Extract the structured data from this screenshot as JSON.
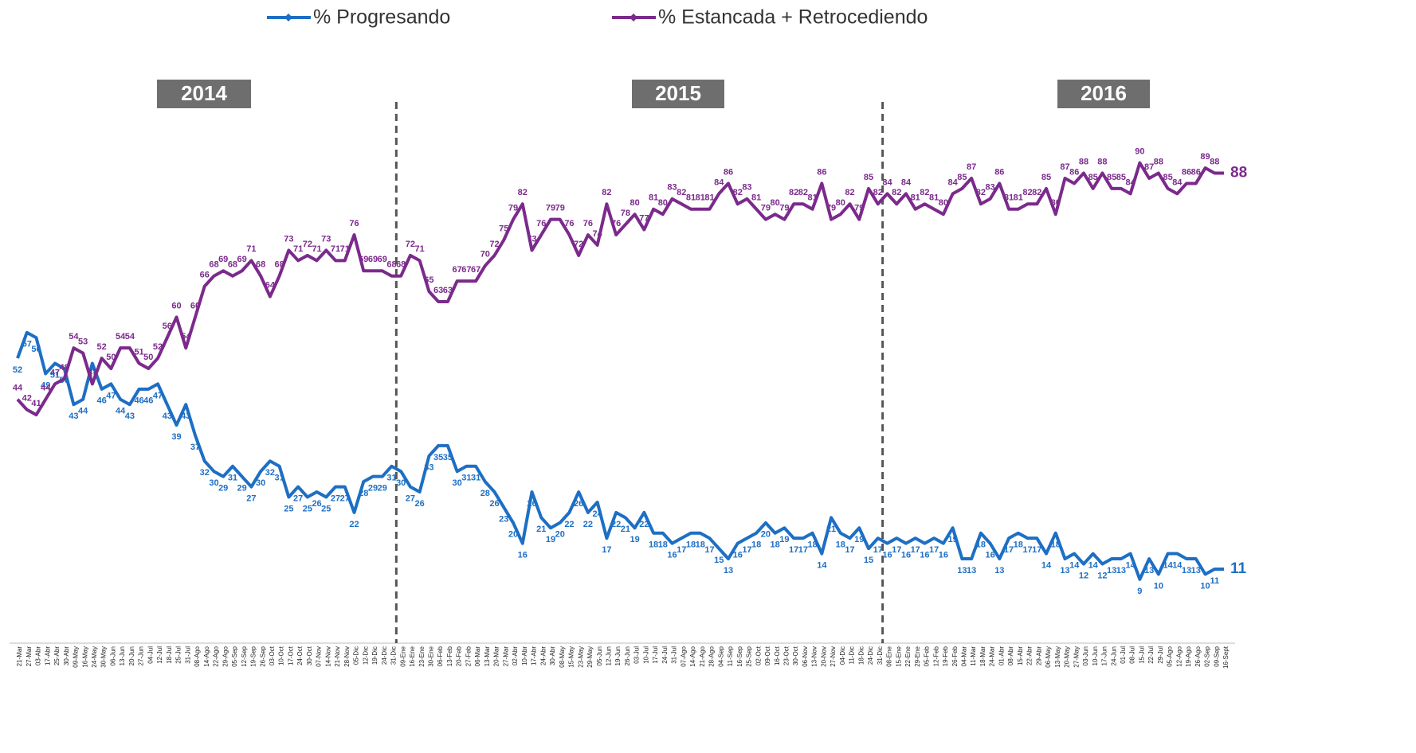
{
  "chart_data": {
    "type": "line",
    "year_labels": [
      "2014",
      "2015",
      "2016"
    ],
    "categories": [
      "21-Mar",
      "27-Mar",
      "03-Abr",
      "17-Abr",
      "25-Abr",
      "30-Abr",
      "09-May",
      "16-May",
      "24-May",
      "30-May",
      "06-Jun",
      "13-Jun",
      "20-Jun",
      "27-Jun",
      "04-Jul",
      "12-Jul",
      "18-Jul",
      "25-Jul",
      "31-Jul",
      "08-Ago",
      "14-Ago",
      "22-Ago",
      "29-Ago",
      "05-Sep",
      "12-Sep",
      "19-Sep",
      "26-Sep",
      "03-Oct",
      "10-Oct",
      "17-Oct",
      "24-Oct",
      "30-Oct",
      "07-Nov",
      "14-Nov",
      "21-Nov",
      "28-Nov",
      "05-Dic",
      "12-Dic",
      "19-Dic",
      "24-Dic",
      "31-Dic",
      "09-Ene",
      "16-Ene",
      "23-Ene",
      "30-Ene",
      "06-Feb",
      "13-Feb",
      "20-Feb",
      "27-Feb",
      "06-Mar",
      "13-Mar",
      "20-Mar",
      "27-Mar",
      "02-Abr",
      "10-Abr",
      "17-Abr",
      "24-Abr",
      "30-Abr",
      "08-May",
      "15-May",
      "23-May",
      "29-May",
      "05-Jun",
      "12-Jun",
      "19-Jun",
      "26-Jun",
      "03-Jul",
      "10-Jul",
      "17-Jul",
      "24-Jul",
      "31-Jul",
      "07-Ago",
      "14-Ago",
      "21-Ago",
      "28-Ago",
      "04-Sep",
      "11-Sep",
      "16-Sep",
      "25-Sep",
      "02-Oct",
      "09-Oct",
      "16-Oct",
      "23-Oct",
      "30-Oct",
      "06-Nov",
      "13-Nov",
      "20-Nov",
      "27-Nov",
      "04-Dic",
      "11-Dic",
      "18-Dic",
      "24-Dic",
      "31-Dic",
      "08-Ene",
      "15-Ene",
      "22-Ene",
      "29-Ene",
      "05-Feb",
      "12-Feb",
      "19-Feb",
      "26-Feb",
      "04-Mar",
      "11-Mar",
      "18-Mar",
      "24-Mar",
      "01-Abr",
      "08-Abr",
      "15-Abr",
      "22-Abr",
      "29-Abr",
      "06-May",
      "13-May",
      "20-May",
      "27-May",
      "03-Jun",
      "10-Jun",
      "17-Jun",
      "24-Jun",
      "01-Jul",
      "08-Jul",
      "15-Jul",
      "22-Jul",
      "29-Jul",
      "05-Ago",
      "12-Ago",
      "19-Ago",
      "26-Ago",
      "02-Sep",
      "09-Sep",
      "16-Sept"
    ],
    "series": [
      {
        "name": "% Progresando",
        "color": "#1d6fc4",
        "values": [
          52,
          57,
          56,
          49,
          51,
          50,
          43,
          44,
          51,
          46,
          47,
          44,
          43,
          46,
          46,
          47,
          43,
          39,
          43,
          37,
          32,
          30,
          29,
          31,
          29,
          27,
          30,
          32,
          31,
          25,
          27,
          25,
          26,
          25,
          27,
          27,
          22,
          28,
          29,
          29,
          31,
          30,
          27,
          26,
          33,
          35,
          35,
          30,
          31,
          31,
          28,
          26,
          23,
          20,
          16,
          26,
          21,
          19,
          20,
          22,
          26,
          22,
          24,
          17,
          22,
          21,
          19,
          22,
          18,
          18,
          16,
          17,
          18,
          18,
          17,
          15,
          13,
          16,
          17,
          18,
          20,
          18,
          19,
          17,
          17,
          18,
          14,
          21,
          18,
          17,
          19,
          15,
          17,
          16,
          17,
          16,
          17,
          16,
          17,
          16,
          19,
          13,
          13,
          18,
          16,
          13,
          17,
          18,
          17,
          17,
          14,
          18,
          13,
          14,
          12,
          14,
          12,
          13,
          13,
          14,
          9,
          13,
          10,
          14,
          14,
          13,
          13,
          10,
          11,
          11
        ]
      },
      {
        "name": "% Estancada + Retrocediendo",
        "color": "#7b2a8c",
        "values": [
          44,
          42,
          41,
          44,
          47,
          48,
          54,
          53,
          47,
          52,
          50,
          54,
          54,
          51,
          50,
          52,
          56,
          60,
          54,
          60,
          66,
          68,
          69,
          68,
          69,
          71,
          68,
          64,
          68,
          73,
          71,
          72,
          71,
          73,
          71,
          71,
          76,
          69,
          69,
          69,
          68,
          68,
          72,
          71,
          65,
          63,
          63,
          67,
          67,
          67,
          70,
          72,
          75,
          79,
          82,
          73,
          76,
          79,
          79,
          76,
          72,
          76,
          74,
          82,
          76,
          78,
          80,
          77,
          81,
          80,
          83,
          82,
          81,
          81,
          81,
          84,
          86,
          82,
          83,
          81,
          79,
          80,
          79,
          82,
          82,
          81,
          86,
          79,
          80,
          82,
          79,
          85,
          82,
          84,
          82,
          84,
          81,
          82,
          81,
          80,
          84,
          85,
          87,
          82,
          83,
          86,
          81,
          81,
          82,
          82,
          85,
          80,
          87,
          86,
          88,
          85,
          88,
          85,
          85,
          84,
          90,
          87,
          88,
          85,
          84,
          86,
          86,
          89,
          88,
          88
        ]
      }
    ],
    "ylim": [
      0,
      100
    ]
  }
}
